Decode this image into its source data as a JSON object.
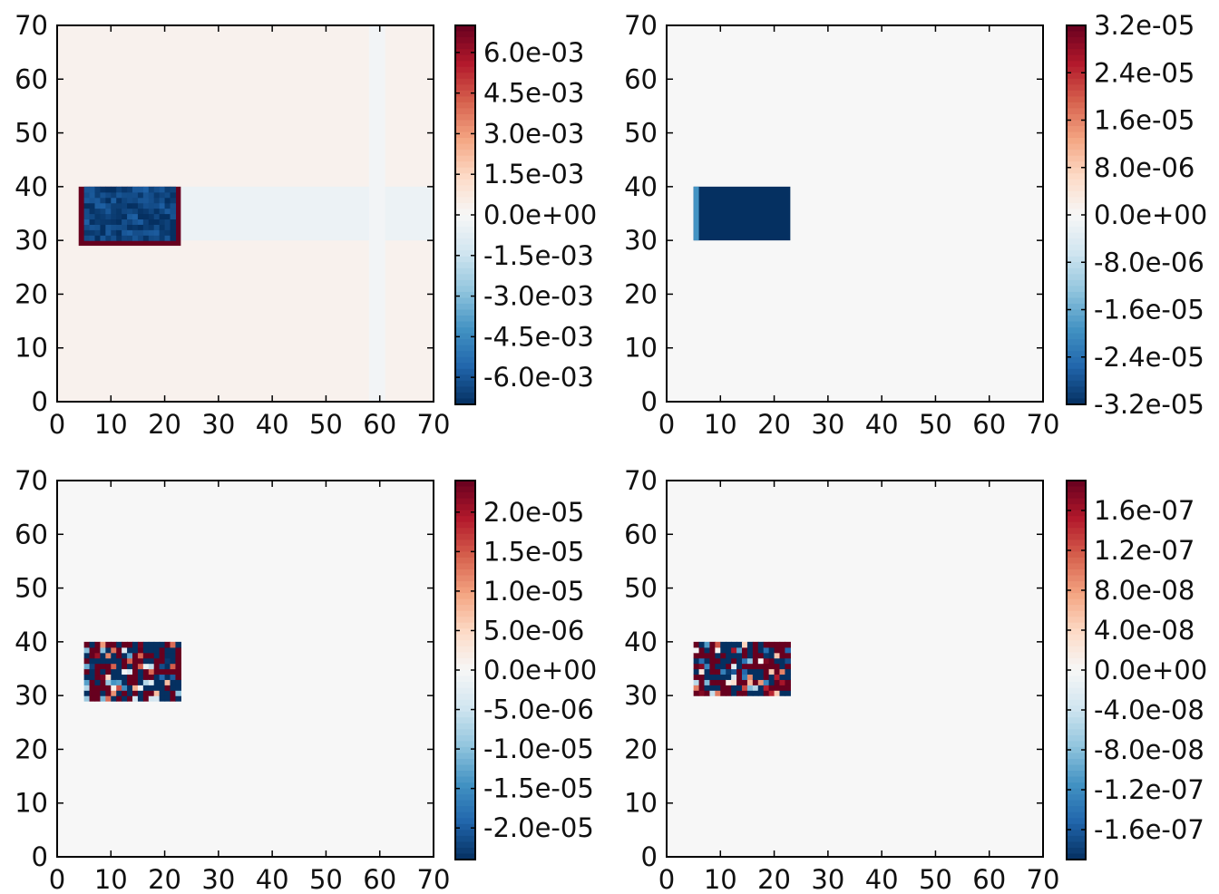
{
  "chart_data": [
    {
      "type": "heatmap",
      "title": "",
      "xlabel": "",
      "ylabel": "",
      "xlim": [
        0,
        70
      ],
      "ylim": [
        0,
        70
      ],
      "xticks": [
        "0",
        "10",
        "20",
        "30",
        "40",
        "50",
        "60",
        "70"
      ],
      "yticks": [
        "0",
        "10",
        "20",
        "30",
        "40",
        "50",
        "60",
        "70"
      ],
      "colormap": "RdBu_r",
      "colorbar": {
        "min": -0.007,
        "max": 0.007,
        "tick_values": [
          0.006,
          0.0045,
          0.003,
          0.0015,
          0.0,
          -0.0015,
          -0.003,
          -0.0045,
          -0.006
        ],
        "tick_labels": [
          "6.0e-03",
          "4.5e-03",
          "3.0e-03",
          "1.5e-03",
          "0.0e+00",
          "-1.5e-03",
          "-3.0e-03",
          "-4.5e-03",
          "-6.0e-03"
        ]
      },
      "pattern": "bordered_block",
      "block": {
        "x": [
          4,
          23
        ],
        "y": [
          29,
          40
        ]
      },
      "block_value": -0.0065,
      "border_value": 0.007,
      "background_value": 0.0003,
      "faint_band": {
        "x": [
          23,
          70
        ],
        "y": [
          30,
          40
        ],
        "value": -0.0004
      }
    },
    {
      "type": "heatmap",
      "title": "",
      "xlabel": "",
      "ylabel": "",
      "xlim": [
        0,
        70
      ],
      "ylim": [
        0,
        70
      ],
      "xticks": [
        "0",
        "10",
        "20",
        "30",
        "40",
        "50",
        "60",
        "70"
      ],
      "yticks": [
        "0",
        "10",
        "20",
        "30",
        "40",
        "50",
        "60",
        "70"
      ],
      "colormap": "RdBu_r",
      "colorbar": {
        "min": -3.2e-05,
        "max": 3.2e-05,
        "tick_values": [
          3.2e-05,
          2.4e-05,
          1.6e-05,
          8e-06,
          0.0,
          -8e-06,
          -1.6e-05,
          -2.4e-05,
          -3.2e-05
        ],
        "tick_labels": [
          "3.2e-05",
          "2.4e-05",
          "1.6e-05",
          "8.0e-06",
          "0.0e+00",
          "-8.0e-06",
          "-1.6e-05",
          "-2.4e-05",
          "-3.2e-05"
        ]
      },
      "pattern": "solid_block",
      "block": {
        "x": [
          5,
          23
        ],
        "y": [
          30,
          40
        ]
      },
      "block_value": -3.2e-05,
      "background_value": 0.0
    },
    {
      "type": "heatmap",
      "title": "",
      "xlabel": "",
      "ylabel": "",
      "xlim": [
        0,
        70
      ],
      "ylim": [
        0,
        70
      ],
      "xticks": [
        "0",
        "10",
        "20",
        "30",
        "40",
        "50",
        "60",
        "70"
      ],
      "yticks": [
        "0",
        "10",
        "20",
        "30",
        "40",
        "50",
        "60",
        "70"
      ],
      "colormap": "RdBu_r",
      "colorbar": {
        "min": -2.4e-05,
        "max": 2.4e-05,
        "tick_values": [
          2e-05,
          1.5e-05,
          1e-05,
          5e-06,
          0.0,
          -5e-06,
          -1e-05,
          -1.5e-05,
          -2e-05
        ],
        "tick_labels": [
          "2.0e-05",
          "1.5e-05",
          "1.0e-05",
          "5.0e-06",
          "0.0e+00",
          "-5.0e-06",
          "-1.0e-05",
          "-1.5e-05",
          "-2.0e-05"
        ]
      },
      "pattern": "noisy_block",
      "block": {
        "x": [
          5,
          23
        ],
        "y": [
          29,
          40
        ]
      },
      "block_value_range": [
        -2.4e-05,
        2.4e-05
      ],
      "background_value": 0.0
    },
    {
      "type": "heatmap",
      "title": "",
      "xlabel": "",
      "ylabel": "",
      "xlim": [
        0,
        70
      ],
      "ylim": [
        0,
        70
      ],
      "xticks": [
        "0",
        "10",
        "20",
        "30",
        "40",
        "50",
        "60",
        "70"
      ],
      "yticks": [
        "0",
        "10",
        "20",
        "30",
        "40",
        "50",
        "60",
        "70"
      ],
      "colormap": "RdBu_r",
      "colorbar": {
        "min": -1.9e-07,
        "max": 1.9e-07,
        "tick_values": [
          1.6e-07,
          1.2e-07,
          8e-08,
          4e-08,
          0.0,
          -4e-08,
          -8e-08,
          -1.2e-07,
          -1.6e-07
        ],
        "tick_labels": [
          "1.6e-07",
          "1.2e-07",
          "8.0e-08",
          "4.0e-08",
          "0.0e+00",
          "-4.0e-08",
          "-8.0e-08",
          "-1.2e-07",
          "-1.6e-07"
        ]
      },
      "pattern": "noisy_block",
      "block": {
        "x": [
          5,
          23
        ],
        "y": [
          30,
          40
        ]
      },
      "block_value_range": [
        -1.9e-07,
        1.9e-07
      ],
      "background_value": 0.0
    }
  ]
}
